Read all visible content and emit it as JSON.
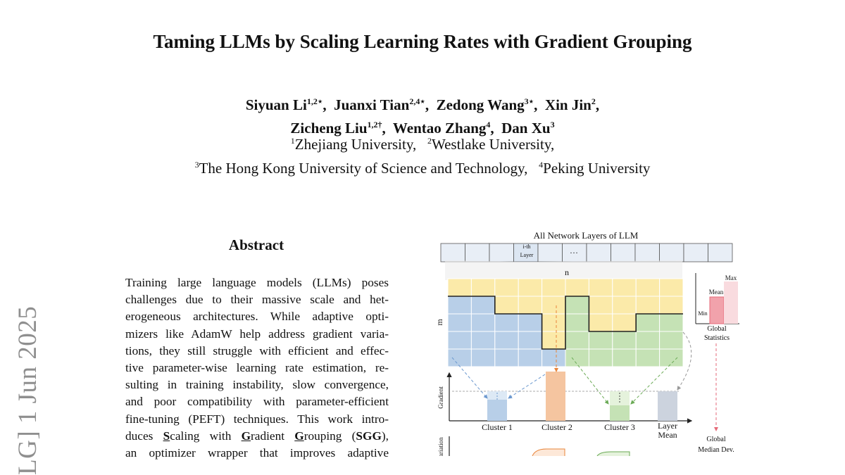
{
  "sidebar": {
    "arxiv_stamp": "LG]  1 Jun 2025"
  },
  "paper": {
    "title": "Taming LLMs by Scaling Learning Rates with Gradient Grouping",
    "authors": [
      {
        "name": "Siyuan Li",
        "sup": "1,2⋆"
      },
      {
        "name": "Juanxi Tian",
        "sup": "2,4⋆"
      },
      {
        "name": "Zedong Wang",
        "sup": "3⋆"
      },
      {
        "name": "Xin Jin",
        "sup": "2"
      },
      {
        "name": "Zicheng Liu",
        "sup": "1,2†"
      },
      {
        "name": "Wentao Zhang",
        "sup": "4"
      },
      {
        "name": "Dan Xu",
        "sup": "3"
      }
    ],
    "affiliations": [
      {
        "sup": "1",
        "name": "Zhejiang University,"
      },
      {
        "sup": "2",
        "name": "Westlake University,"
      },
      {
        "sup": "3",
        "name": "The Hong Kong University of Science and Technology,"
      },
      {
        "sup": "4",
        "name": "Peking University"
      }
    ]
  },
  "abstract": {
    "heading": "Abstract",
    "lines": [
      "Training large language models (LLMs) poses",
      "challenges due to their massive scale and het-",
      "erogeneous architectures. While adaptive opti-",
      "mizers like AdamW help address gradient varia-",
      "tions, they still struggle with efficient and effec-",
      "tive parameter-wise learning rate estimation, re-",
      "sulting in training instability, slow convergence,",
      "and poor compatibility with parameter-efficient",
      "fine-tuning (PEFT) techniques. This work intro-"
    ],
    "line10": {
      "a": "duces ",
      "s1": "S",
      "b": "caling with ",
      "g1": "G",
      "c": "radient ",
      "g2": "G",
      "d": "rouping (",
      "sgg": "SGG",
      "e": "),"
    },
    "line11": "an optimizer wrapper that improves adaptive"
  },
  "figure": {
    "top_caption": "All Network Layers of LLM",
    "layer_label": "i-th Layer",
    "ellipsis": "…",
    "n_label": "n",
    "m_label": "m",
    "gradient_axis": "Gradient",
    "variation_axis": "Variation",
    "clusters": [
      "Cluster 1",
      "Cluster 2",
      "Cluster 3",
      "Layer Mean"
    ],
    "global_stats": {
      "max": "Max",
      "mean": "Mean",
      "min": "Min",
      "label": "Global Statistics"
    },
    "global_median": "Global Median Dev.",
    "colors": {
      "blue": "#b8cfe8",
      "orange": "#f5c5a0",
      "green": "#c5e2b5",
      "yellow": "#fbeaa9",
      "pink": "#f6c9cf",
      "grey": "#ccd3de"
    }
  }
}
